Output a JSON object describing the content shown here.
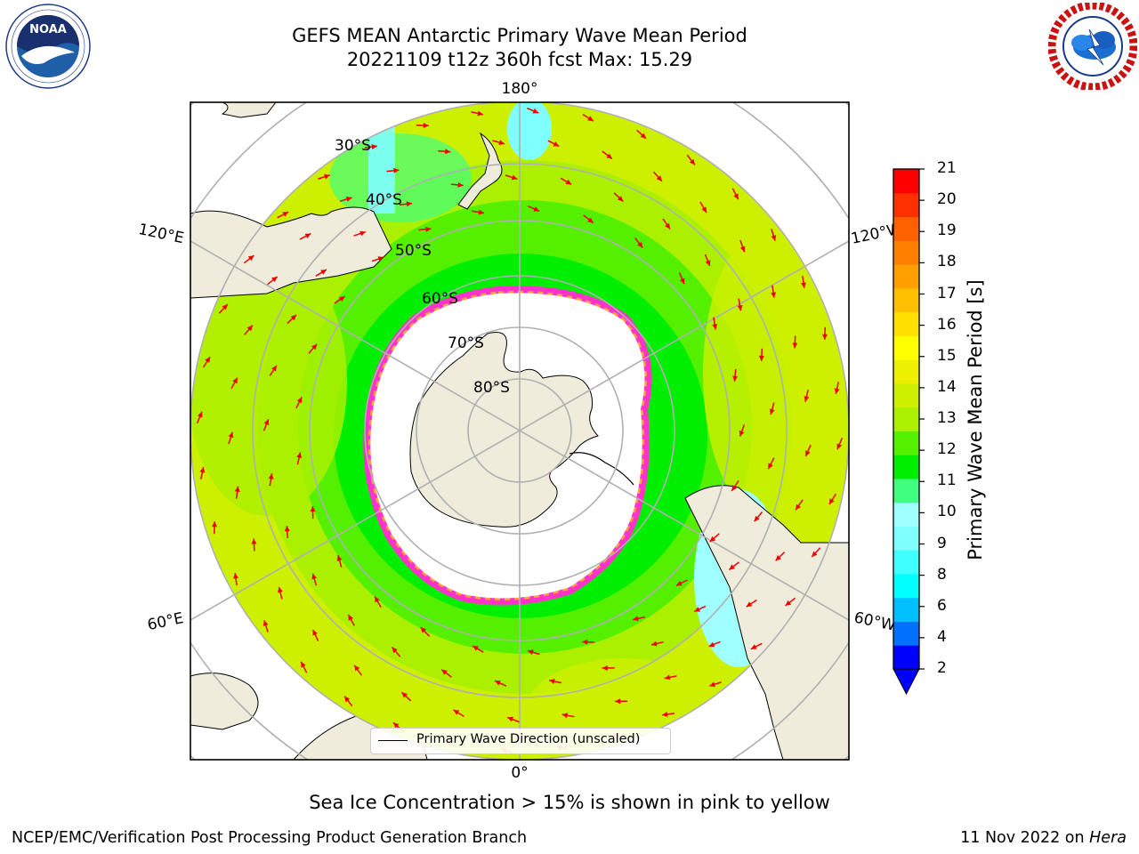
{
  "header": {
    "title_line1": "GEFS MEAN Antarctic Primary Wave Mean Period",
    "title_line2": "20221109 t12z 360h fcst   Max: 15.29"
  },
  "logos": {
    "left": {
      "name": "noaa-logo",
      "text": "NOAA",
      "ring_text": "NATIONAL OCEANIC AND ATMOSPHERIC ADMINISTRATION · U.S. DEPARTMENT OF COMMERCE"
    },
    "right": {
      "name": "nws-logo",
      "ring_text": "NATIONAL WEATHER SERVICE"
    }
  },
  "map": {
    "lat_labels": [
      "30°S",
      "40°S",
      "50°S",
      "60°S",
      "70°S",
      "80°S"
    ],
    "lon_labels": {
      "top": "180°",
      "bottom": "0°",
      "upper_left": "120°E",
      "upper_right": "120°W",
      "lower_left": "60°E",
      "lower_right": "60°W"
    },
    "legend_text": "Primary Wave Direction (unscaled)",
    "colors": {
      "ocean_mid": "#00ee00",
      "ocean_outer": "#ccf000",
      "land": "#efecdc",
      "ice": "#ffffff",
      "arrow": "#ee0000"
    }
  },
  "colorbar": {
    "label": "Primary Wave Mean Period [s]",
    "ticks": [
      "21",
      "20",
      "19",
      "18",
      "17",
      "16",
      "15",
      "14",
      "13",
      "12",
      "11",
      "10",
      "9",
      "8",
      "6",
      "4",
      "2"
    ],
    "colors": [
      "#0000ff",
      "#0070ff",
      "#00bfff",
      "#00ffff",
      "#40ffff",
      "#80ffff",
      "#a0ffff",
      "#40ff80",
      "#00ee00",
      "#55f000",
      "#aaf000",
      "#ccf000",
      "#eef000",
      "#ffff00",
      "#ffe000",
      "#ffc000",
      "#ffa000",
      "#ff8000",
      "#ff6000",
      "#ff3000",
      "#ff0000"
    ]
  },
  "notes": {
    "sea_ice": "Sea Ice Concentration > 15% is shown in pink to yellow",
    "footer_left": "NCEP/EMC/Verification Post Processing Product Generation Branch",
    "footer_date": "11 Nov 2022 on ",
    "footer_machine": "Hera"
  }
}
